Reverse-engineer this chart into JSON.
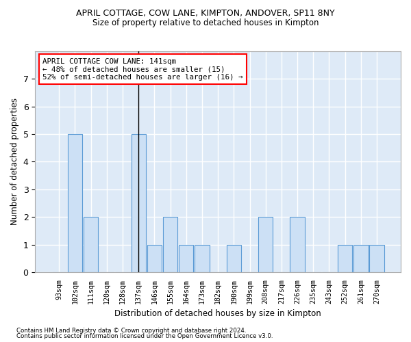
{
  "title1": "APRIL COTTAGE, COW LANE, KIMPTON, ANDOVER, SP11 8NY",
  "title2": "Size of property relative to detached houses in Kimpton",
  "xlabel": "Distribution of detached houses by size in Kimpton",
  "ylabel": "Number of detached properties",
  "categories": [
    "93sqm",
    "102sqm",
    "111sqm",
    "120sqm",
    "128sqm",
    "137sqm",
    "146sqm",
    "155sqm",
    "164sqm",
    "173sqm",
    "182sqm",
    "190sqm",
    "199sqm",
    "208sqm",
    "217sqm",
    "226sqm",
    "235sqm",
    "243sqm",
    "252sqm",
    "261sqm",
    "270sqm"
  ],
  "values": [
    0,
    5,
    2,
    0,
    0,
    5,
    1,
    2,
    1,
    1,
    0,
    1,
    0,
    2,
    0,
    2,
    0,
    0,
    1,
    1,
    1
  ],
  "highlight_index": 5,
  "bar_color": "#cce0f5",
  "bar_edge_color": "#5b9bd5",
  "highlight_line_color": "#000000",
  "background_color": "#deeaf7",
  "grid_color": "#ffffff",
  "ylim": [
    0,
    8
  ],
  "yticks": [
    0,
    1,
    2,
    3,
    4,
    5,
    6,
    7,
    8
  ],
  "annotation_text": "APRIL COTTAGE COW LANE: 141sqm\n← 48% of detached houses are smaller (15)\n52% of semi-detached houses are larger (16) →",
  "footnote1": "Contains HM Land Registry data © Crown copyright and database right 2024.",
  "footnote2": "Contains public sector information licensed under the Open Government Licence v3.0."
}
